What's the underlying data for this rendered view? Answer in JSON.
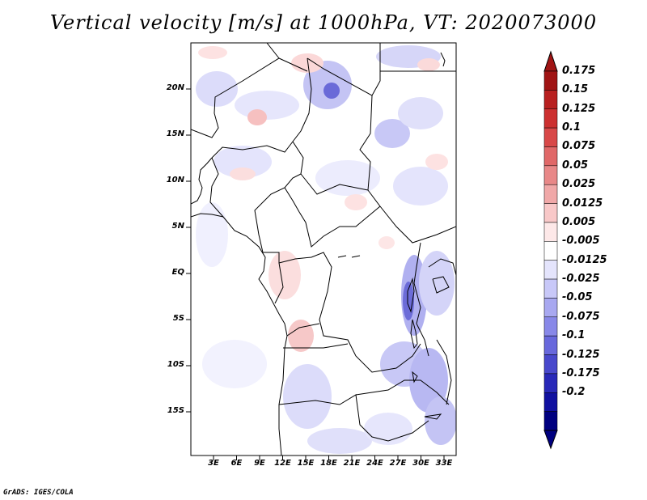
{
  "title": "Vertical velocity [m/s] at 1000hPa, VT: 2020073000",
  "footer": "GrADS: IGES/COLA",
  "lat_labels": [
    "20N",
    "15N",
    "10N",
    "5N",
    "EQ",
    "5S",
    "10S",
    "15S"
  ],
  "lon_labels": [
    "3E",
    "6E",
    "9E",
    "12E",
    "15E",
    "18E",
    "21E",
    "24E",
    "27E",
    "30E",
    "33E"
  ],
  "colorbar": {
    "labels": [
      "0.175",
      "0.15",
      "0.125",
      "0.1",
      "0.075",
      "0.05",
      "0.025",
      "0.0125",
      "0.005",
      "-0.005",
      "-0.0125",
      "-0.025",
      "-0.05",
      "-0.075",
      "-0.1",
      "-0.125",
      "-0.175",
      "-0.2"
    ],
    "colors": [
      "#a01414",
      "#b82020",
      "#cc3030",
      "#d84848",
      "#e06868",
      "#e88888",
      "#f0a8a8",
      "#f8c8c8",
      "#fde8e8",
      "#ffffff",
      "#e4e4fc",
      "#c8c8f8",
      "#a8a8f0",
      "#8888e8",
      "#6868dc",
      "#4848cc",
      "#2828b8",
      "#1010a0",
      "#000080"
    ]
  }
}
